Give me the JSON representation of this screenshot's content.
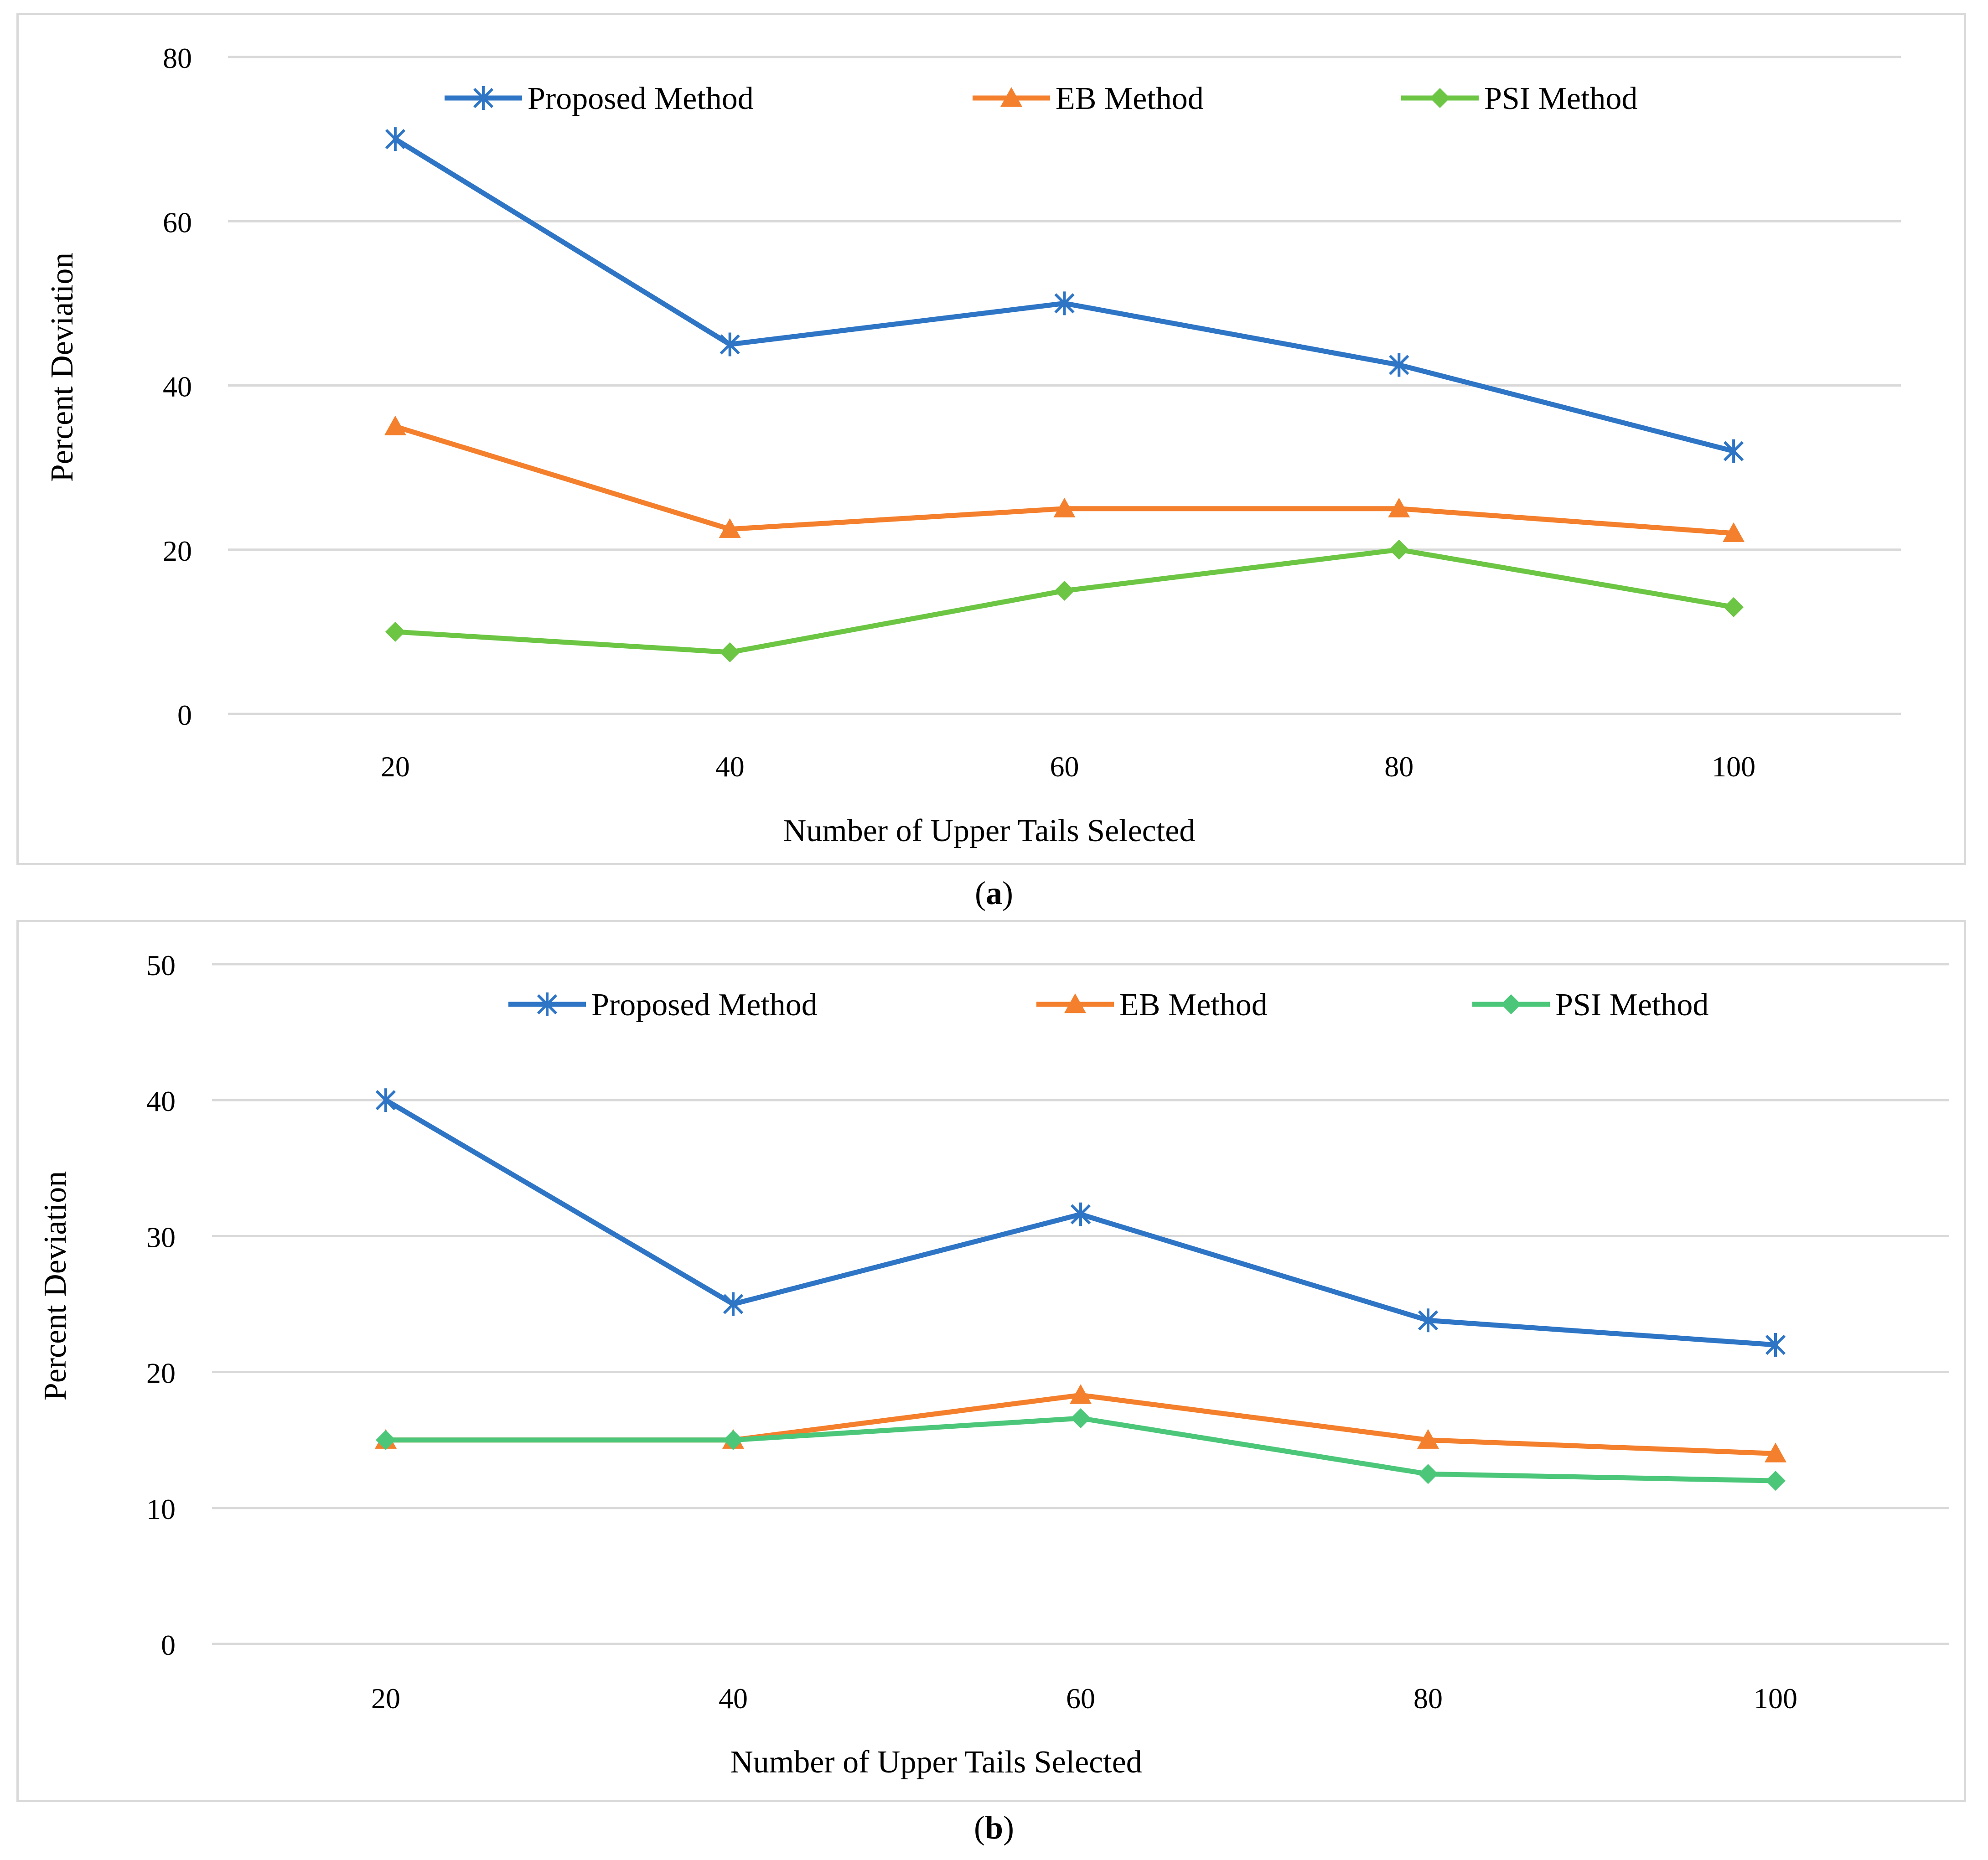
{
  "chart_data": [
    {
      "panel": "a",
      "type": "line",
      "title": "",
      "xlabel": "Number of Upper Tails Selected",
      "ylabel": "Percent Deviation",
      "categories": [
        "20",
        "40",
        "60",
        "80",
        "100"
      ],
      "ylim": [
        0,
        80
      ],
      "yticks": [
        0,
        20,
        40,
        60,
        80
      ],
      "grid": true,
      "legend_position": "top",
      "series": [
        {
          "name": "Proposed Method",
          "values": [
            70,
            45,
            50,
            42.5,
            32
          ],
          "color": "#2e75c6",
          "marker": "asterisk"
        },
        {
          "name": "EB Method",
          "values": [
            35,
            22.5,
            25,
            25,
            22
          ],
          "color": "#f47f2c",
          "marker": "triangle"
        },
        {
          "name": "PSI Method",
          "values": [
            10,
            7.5,
            15,
            20,
            13
          ],
          "color": "#6cc644",
          "marker": "diamond"
        }
      ],
      "caption_prefix": "(",
      "caption_label": "a",
      "caption_suffix": ")"
    },
    {
      "panel": "b",
      "type": "line",
      "title": "",
      "xlabel": "Number of Upper Tails Selected",
      "ylabel": "Percent Deviation",
      "categories": [
        "20",
        "40",
        "60",
        "80",
        "100"
      ],
      "ylim": [
        0,
        50
      ],
      "yticks": [
        0,
        10,
        20,
        30,
        40,
        50
      ],
      "grid": true,
      "legend_position": "top",
      "series": [
        {
          "name": "Proposed Method",
          "values": [
            40,
            25,
            31.6,
            23.8,
            22
          ],
          "color": "#2e75c6",
          "marker": "asterisk"
        },
        {
          "name": "EB Method",
          "values": [
            15,
            15,
            18.3,
            15,
            14
          ],
          "color": "#f47f2c",
          "marker": "triangle"
        },
        {
          "name": "PSI Method",
          "values": [
            15,
            15,
            16.6,
            12.5,
            12
          ],
          "color": "#4cc77a",
          "marker": "diamond"
        }
      ],
      "caption_prefix": "(",
      "caption_label": "b",
      "caption_suffix": ")"
    }
  ]
}
